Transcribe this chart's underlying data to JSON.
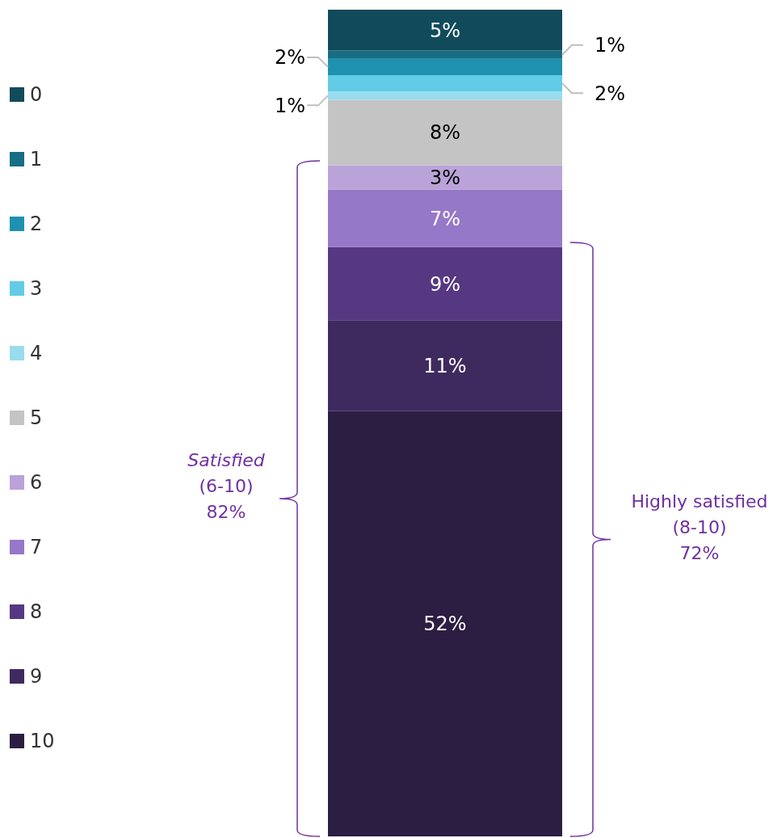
{
  "chart_data": {
    "type": "bar",
    "stacked": true,
    "categories": [
      null
    ],
    "legend": "left",
    "series": [
      {
        "name": "10",
        "color": "#2c1e43",
        "values": [
          52
        ],
        "value_labels": [
          "52%"
        ]
      },
      {
        "name": "9",
        "color": "#3f2a60",
        "values": [
          11
        ],
        "value_labels": [
          "11%"
        ]
      },
      {
        "name": "8",
        "color": "#563882",
        "values": [
          9
        ],
        "value_labels": [
          "9%"
        ]
      },
      {
        "name": "7",
        "color": "#9678c8",
        "values": [
          7
        ],
        "value_labels": [
          "7%"
        ]
      },
      {
        "name": "6",
        "color": "#b9a3d8",
        "values": [
          3
        ],
        "value_labels": [
          "3%"
        ]
      },
      {
        "name": "5",
        "color": "#c4c4c4",
        "values": [
          8
        ],
        "value_labels": [
          "8%"
        ]
      },
      {
        "name": "4",
        "color": "#98dcee",
        "values": [
          1
        ],
        "value_labels": [
          "1%"
        ]
      },
      {
        "name": "3",
        "color": "#62cbe6",
        "values": [
          2
        ],
        "value_labels": [
          "2%"
        ]
      },
      {
        "name": "2",
        "color": "#1e91b0",
        "values": [
          2
        ],
        "value_labels": [
          "2%"
        ]
      },
      {
        "name": "1",
        "color": "#176d84",
        "values": [
          1
        ],
        "value_labels": [
          "1%"
        ]
      },
      {
        "name": "0",
        "color": "#114b5b",
        "values": [
          5
        ],
        "value_labels": [
          "5%"
        ]
      }
    ],
    "annotations": [
      "Satisfied\n(6-10)\n82%",
      "Highly satisfied\n(8-10)\n72%"
    ]
  }
}
